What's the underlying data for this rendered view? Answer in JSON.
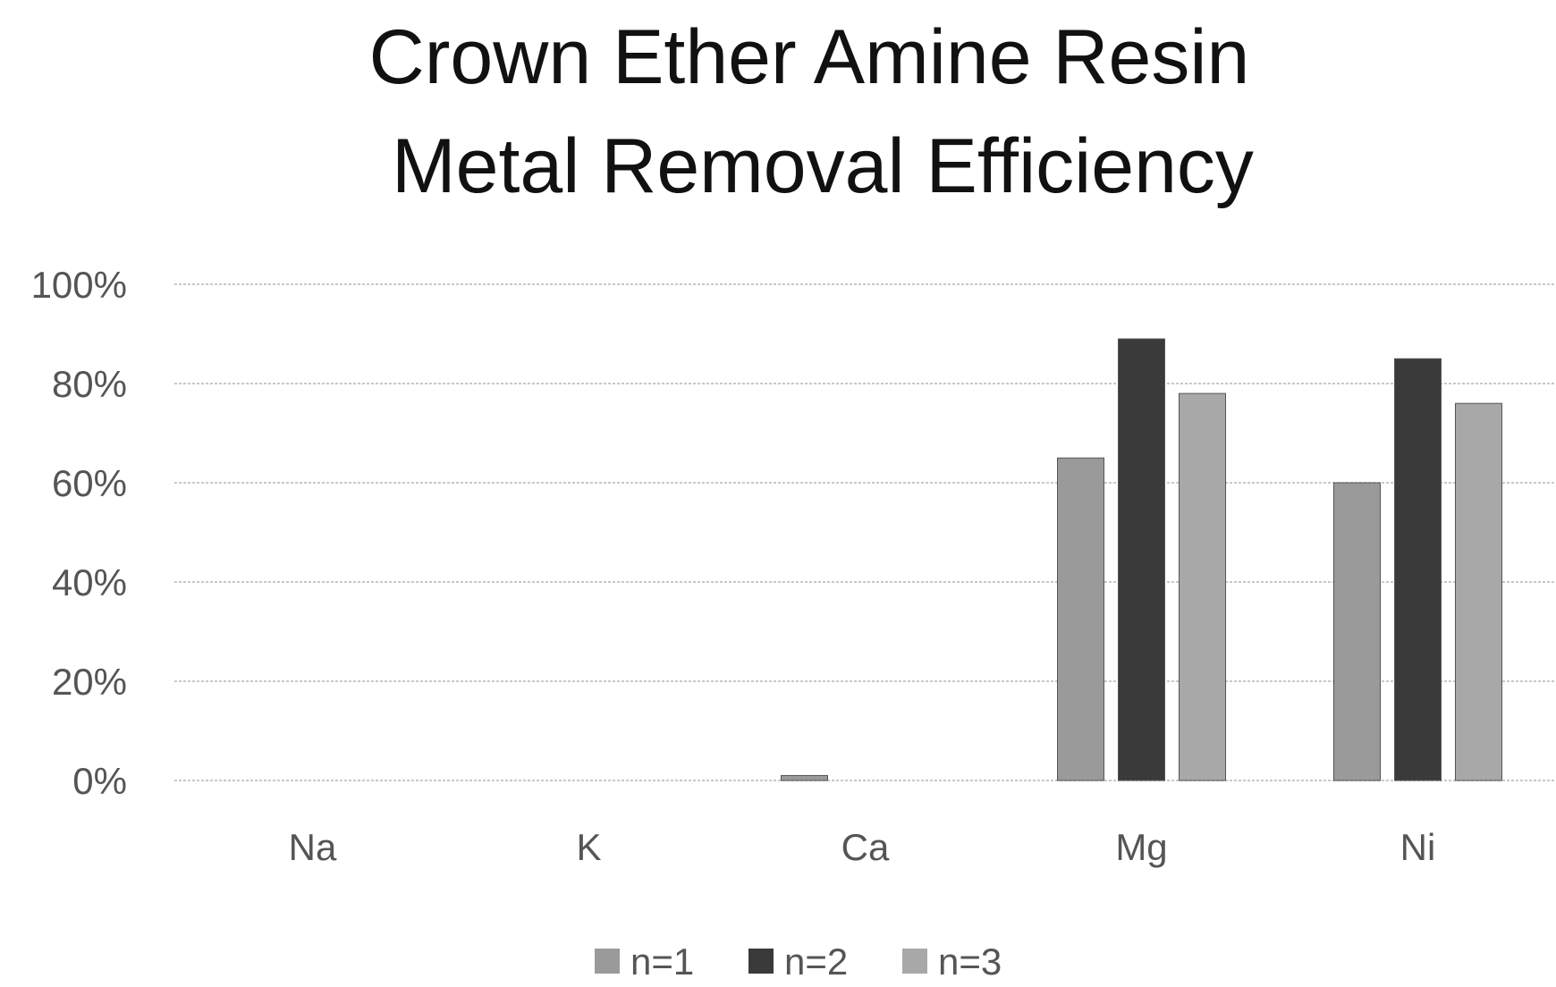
{
  "chart_data": {
    "type": "bar",
    "title": "Crown Ether Amine Resin Metal Removal Efficiency",
    "title_lines": [
      "Crown Ether Amine Resin",
      "Metal Removal Efficiency"
    ],
    "categories": [
      "Na",
      "K",
      "Ca",
      "Mg",
      "Ni"
    ],
    "series": [
      {
        "name": "n=1",
        "color": "#9a9a9a",
        "values": [
          0,
          0,
          1,
          65,
          60
        ]
      },
      {
        "name": "n=2",
        "color": "#3a3a3a",
        "values": [
          0,
          0,
          0,
          89,
          85
        ]
      },
      {
        "name": "n=3",
        "color": "#a8a8a8",
        "values": [
          0,
          0,
          0,
          78,
          76
        ]
      }
    ],
    "ylim": [
      0,
      100
    ],
    "yticks": [
      0,
      20,
      40,
      60,
      80,
      100
    ],
    "ytick_labels": [
      "0%",
      "20%",
      "40%",
      "60%",
      "80%",
      "100%"
    ],
    "value_unit": "%",
    "grid": true,
    "legend_position": "bottom",
    "xlabel": "",
    "ylabel": ""
  }
}
